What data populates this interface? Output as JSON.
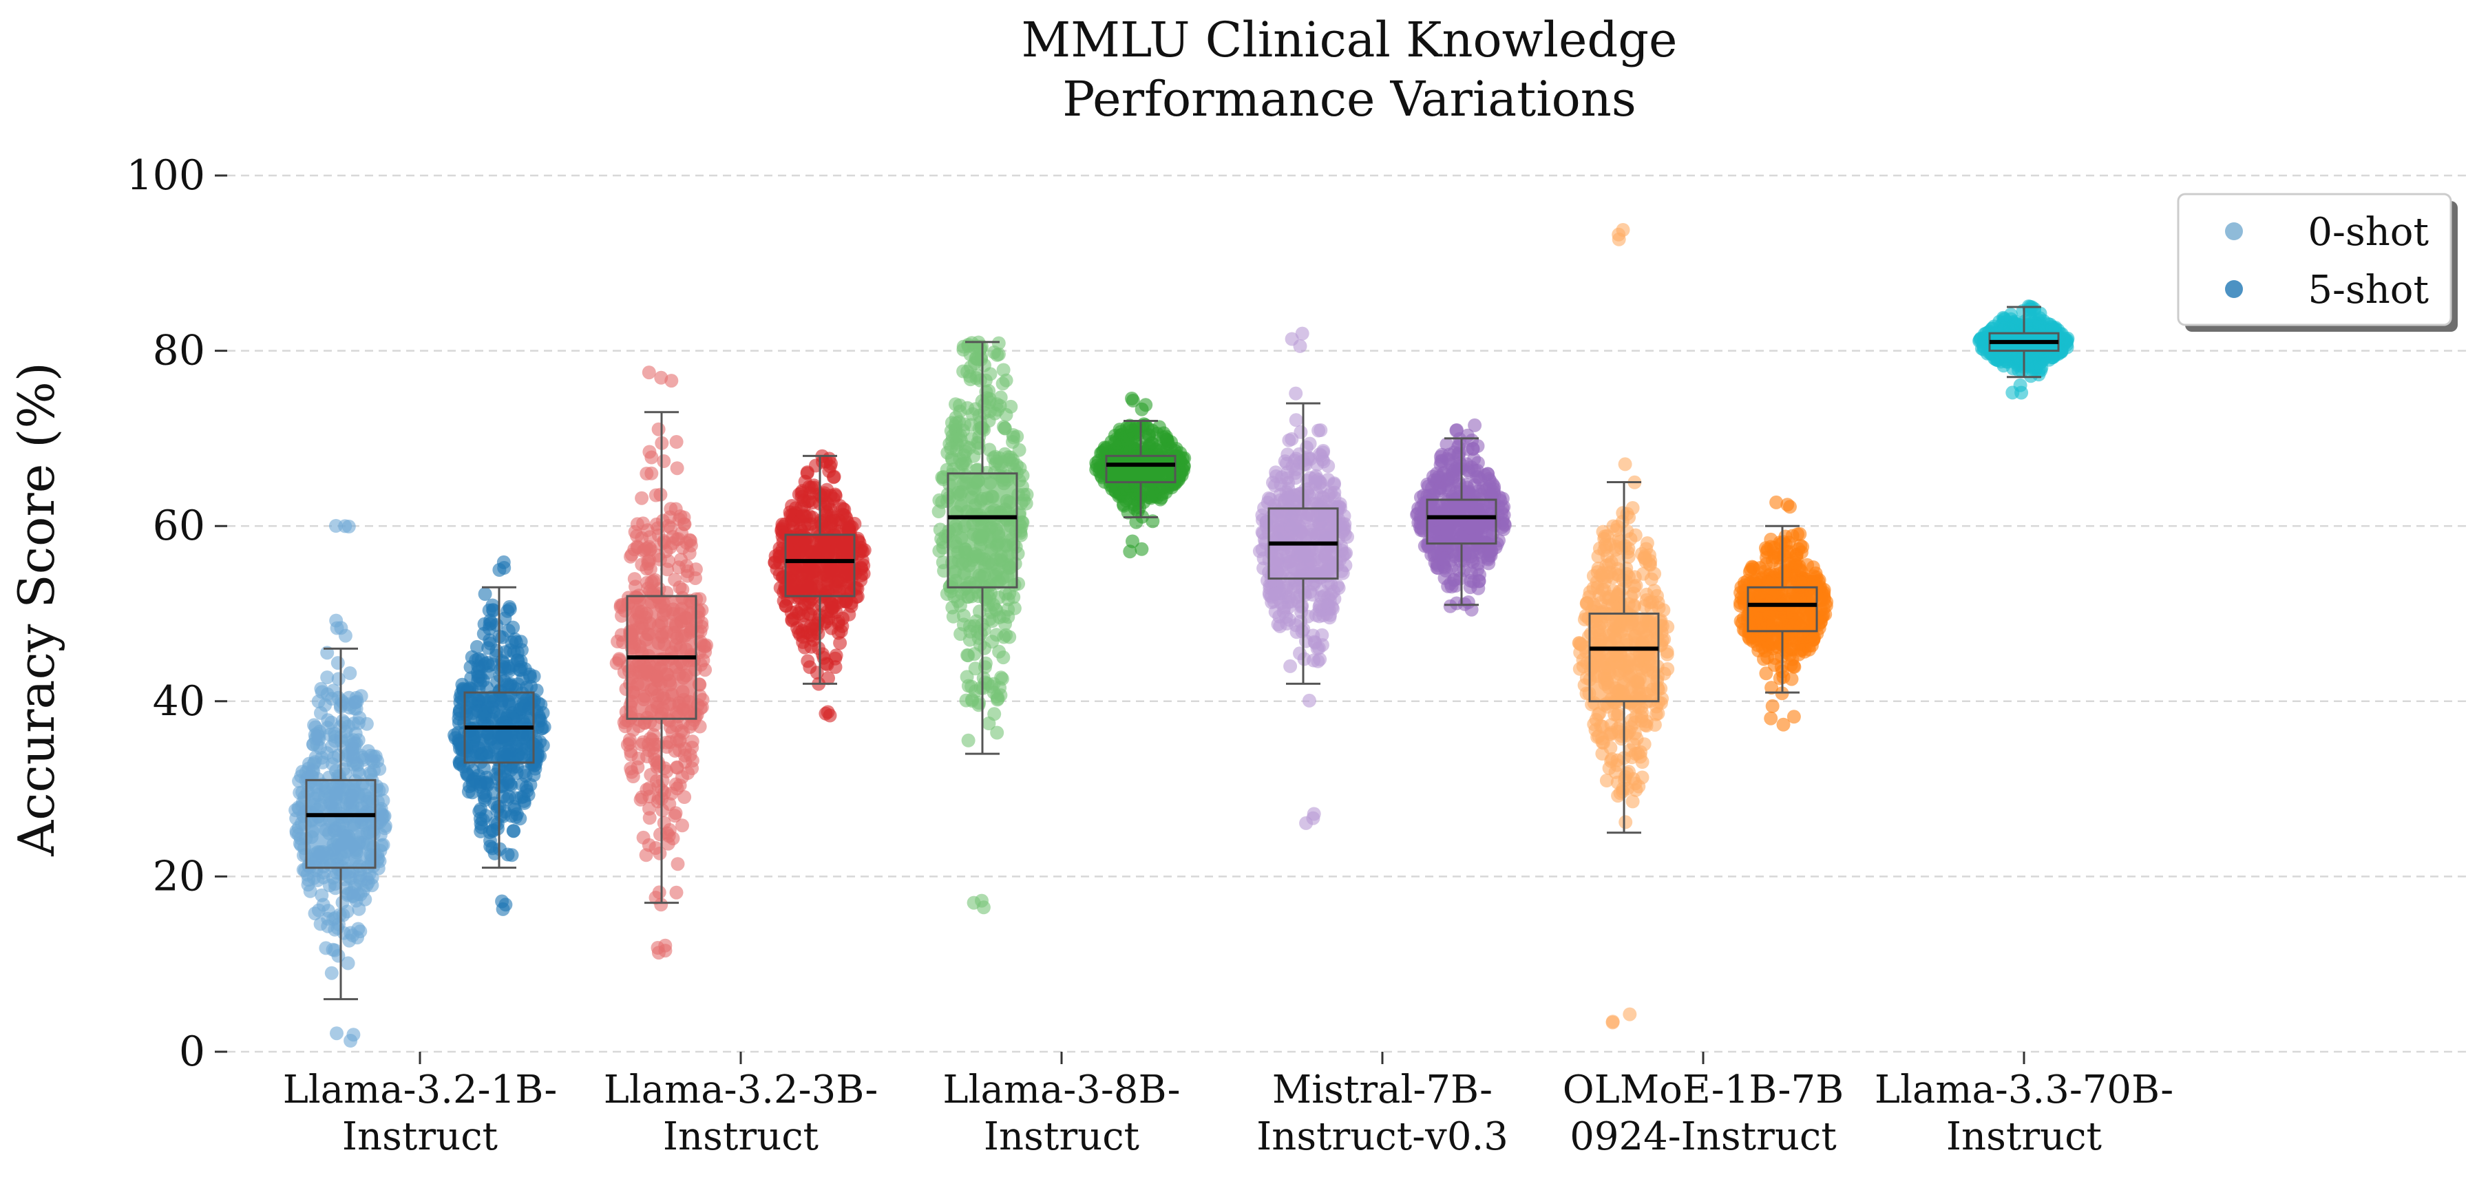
{
  "chart_data": {
    "type": "box",
    "title_line1": "MMLU Clinical Knowledge",
    "title_line2": "Performance Variations",
    "xlabel": "",
    "ylabel": "Accuracy Score (%)",
    "ylim": [
      0,
      100
    ],
    "yticks": [
      "0",
      "20",
      "40",
      "60",
      "80",
      "100"
    ],
    "grid": "horizontal dashed",
    "legend": {
      "placement": "top-right",
      "entries": [
        {
          "label": "0-shot",
          "alpha": 0.5
        },
        {
          "label": "5-shot",
          "alpha": 0.8
        }
      ]
    },
    "models": [
      {
        "line1": "Llama-3.2-1B-",
        "line2": "Instruct",
        "color": "#1f77b4",
        "zero_shot": {
          "whislo": 6,
          "q1": 21,
          "med": 27,
          "q3": 31,
          "whishi": 46,
          "min": 1,
          "max": 61,
          "color": "#6fa8d6"
        },
        "five_shot": {
          "whislo": 21,
          "q1": 33,
          "med": 37,
          "q3": 41,
          "whishi": 53,
          "min": 16,
          "max": 56,
          "color": "#1f77b4"
        }
      },
      {
        "line1": "Llama-3.2-3B-",
        "line2": "Instruct",
        "color": "#d62728",
        "zero_shot": {
          "whislo": 17,
          "q1": 38,
          "med": 45,
          "q3": 52,
          "whishi": 73,
          "min": 11,
          "max": 78,
          "color": "#e46f6f"
        },
        "five_shot": {
          "whislo": 42,
          "q1": 52,
          "med": 56,
          "q3": 59,
          "whishi": 68,
          "min": 38,
          "max": 68,
          "color": "#d62728"
        }
      },
      {
        "line1": "Llama-3-8B-",
        "line2": "Instruct",
        "color": "#2ca02c",
        "zero_shot": {
          "whislo": 34,
          "q1": 53,
          "med": 61,
          "q3": 66,
          "whishi": 81,
          "min": 16,
          "max": 81,
          "color": "#78c478"
        },
        "five_shot": {
          "whislo": 61,
          "q1": 65,
          "med": 67,
          "q3": 68,
          "whishi": 72,
          "min": 57,
          "max": 75,
          "color": "#2ca02c"
        }
      },
      {
        "line1": "Mistral-7B-",
        "line2": "Instruct-v0.3",
        "color": "#9467bd",
        "zero_shot": {
          "whislo": 42,
          "q1": 54,
          "med": 58,
          "q3": 62,
          "whishi": 74,
          "min": 26,
          "max": 82,
          "color": "#b99bd6"
        },
        "five_shot": {
          "whislo": 51,
          "q1": 58,
          "med": 61,
          "q3": 63,
          "whishi": 70,
          "min": 50,
          "max": 72,
          "color": "#9467bd"
        }
      },
      {
        "line1": "OLMoE-1B-7B",
        "line2": "0924-Instruct",
        "color": "#ff7f0e",
        "zero_shot": {
          "whislo": 25,
          "q1": 40,
          "med": 46,
          "q3": 50,
          "whishi": 65,
          "min": 3,
          "max": 94,
          "color": "#ffad66"
        },
        "five_shot": {
          "whislo": 41,
          "q1": 48,
          "med": 51,
          "q3": 53,
          "whishi": 60,
          "min": 37,
          "max": 63,
          "color": "#ff7f0e"
        }
      },
      {
        "line1": "Llama-3.3-70B-",
        "line2": "Instruct",
        "color": "#17becf",
        "zero_shot": {
          "whislo": 77,
          "q1": 80,
          "med": 81,
          "q3": 82,
          "whishi": 85,
          "min": 75,
          "max": 86,
          "color": "#17becf"
        },
        "five_shot": null
      }
    ]
  }
}
